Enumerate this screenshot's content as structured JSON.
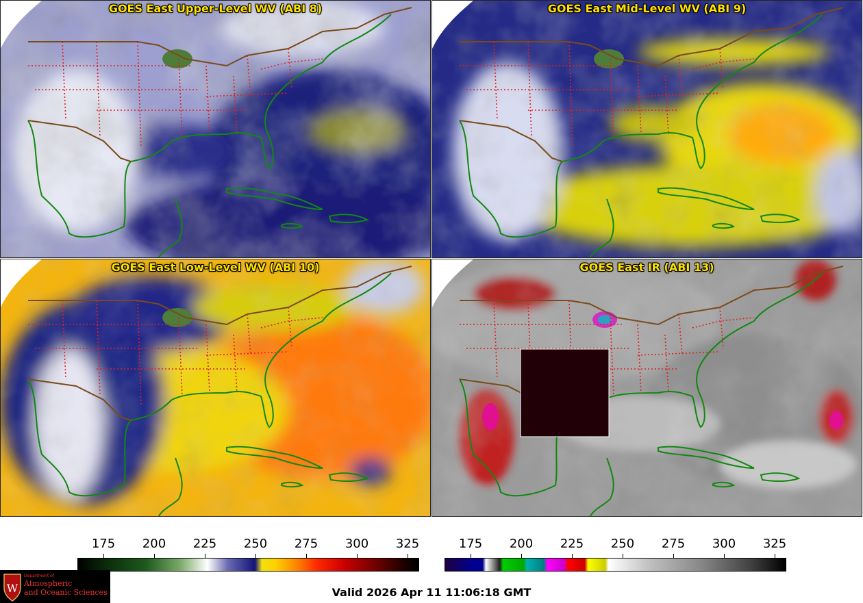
{
  "panels": [
    {
      "title": "GOES East Upper-Level WV (ABI 8)"
    },
    {
      "title": "GOES East Mid-Level WV (ABI 9)"
    },
    {
      "title": "GOES East Low-Level WV (ABI 10)"
    },
    {
      "title": "GOES East IR (ABI 13)"
    }
  ],
  "colorbars": [
    {
      "ticks": [
        "175",
        "200",
        "225",
        "250",
        "275",
        "300",
        "325"
      ]
    },
    {
      "ticks": [
        "175",
        "200",
        "225",
        "250",
        "275",
        "300",
        "325"
      ]
    }
  ],
  "logo": {
    "line1": "Department of",
    "line2": "Atmospheric",
    "line3": "and Oceanic Sciences"
  },
  "valid_time": "Valid 2026 Apr 11 11:06:18 GMT",
  "colors": {
    "wv_navy": "#1a1f7a",
    "wv_yellow": "#e6dc10",
    "wv_orange": "#ff9a10",
    "ir_gray": "#9a9a9a",
    "state_border": "#e02020",
    "country_border": "#7a4a1a",
    "coast": "#118811"
  }
}
